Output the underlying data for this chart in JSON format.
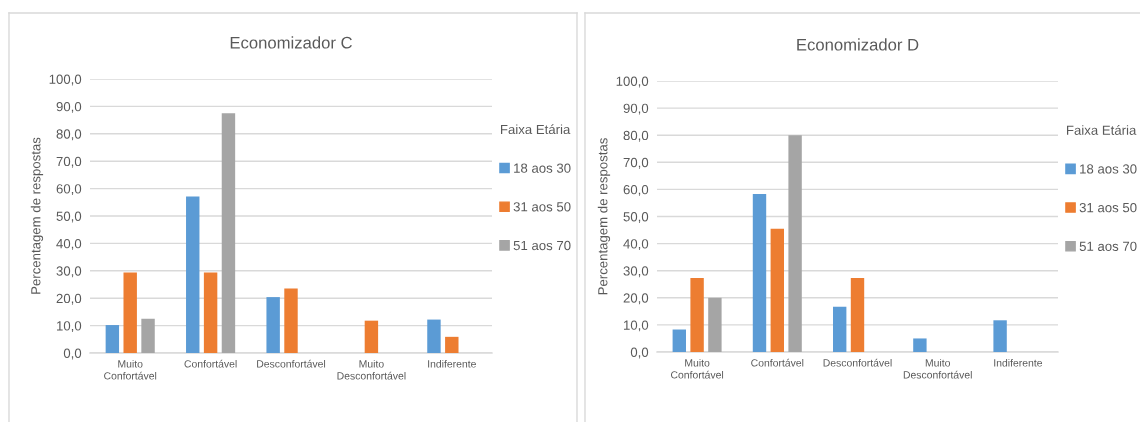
{
  "chart_data": [
    {
      "type": "bar",
      "title": "Economizador C",
      "ylabel": "Percentagem de respostas",
      "legend_title": "Faixa Etária",
      "categories": [
        "Muito Confortável",
        "Confortável",
        "Desconfortável",
        "Muito Desconfortável",
        "Indiferente"
      ],
      "series": [
        {
          "name": "18 aos 30",
          "color": "#5b9bd5",
          "values": [
            10.2,
            57.1,
            20.4,
            0,
            12.2
          ]
        },
        {
          "name": "31 aos 50",
          "color": "#ed7d31",
          "values": [
            29.4,
            29.4,
            23.5,
            11.8,
            5.9
          ]
        },
        {
          "name": "51 aos 70",
          "color": "#a5a5a5",
          "values": [
            12.5,
            87.5,
            0,
            0,
            0
          ]
        }
      ],
      "ylim": [
        0,
        100
      ],
      "yticks": [
        {
          "value": 0,
          "label": "0,0"
        },
        {
          "value": 10,
          "label": "10,0"
        },
        {
          "value": 20,
          "label": "20,0"
        },
        {
          "value": 30,
          "label": "30,0"
        },
        {
          "value": 40,
          "label": "40,0"
        },
        {
          "value": 50,
          "label": "50,0"
        },
        {
          "value": 60,
          "label": "60,0"
        },
        {
          "value": 70,
          "label": "70,0"
        },
        {
          "value": 80,
          "label": "80,0"
        },
        {
          "value": 90,
          "label": "90,0"
        },
        {
          "value": 100,
          "label": "100,0"
        }
      ],
      "grid": "y",
      "legend": "right"
    },
    {
      "type": "bar",
      "title": "Economizador D",
      "ylabel": "Percentagem de respostas",
      "legend_title": "Faixa Etária",
      "categories": [
        "Muito Confortável",
        "Confortável",
        "Desconfortável",
        "Muito Desconfortável",
        "Indiferente"
      ],
      "series": [
        {
          "name": "18 aos 30",
          "color": "#5b9bd5",
          "values": [
            8.3,
            58.3,
            16.7,
            5.0,
            11.7
          ]
        },
        {
          "name": "31 aos 50",
          "color": "#ed7d31",
          "values": [
            27.3,
            45.5,
            27.3,
            0,
            0
          ]
        },
        {
          "name": "51 aos 70",
          "color": "#a5a5a5",
          "values": [
            20.0,
            80.0,
            0,
            0,
            0
          ]
        }
      ],
      "ylim": [
        0,
        100
      ],
      "yticks": [
        {
          "value": 0,
          "label": "0,0"
        },
        {
          "value": 10,
          "label": "10,0"
        },
        {
          "value": 20,
          "label": "20,0"
        },
        {
          "value": 30,
          "label": "30,0"
        },
        {
          "value": 40,
          "label": "40,0"
        },
        {
          "value": 50,
          "label": "50,0"
        },
        {
          "value": 60,
          "label": "60,0"
        },
        {
          "value": 70,
          "label": "70,0"
        },
        {
          "value": 80,
          "label": "80,0"
        },
        {
          "value": 90,
          "label": "90,0"
        },
        {
          "value": 100,
          "label": "100,0"
        }
      ],
      "grid": "y",
      "legend": "right"
    }
  ]
}
